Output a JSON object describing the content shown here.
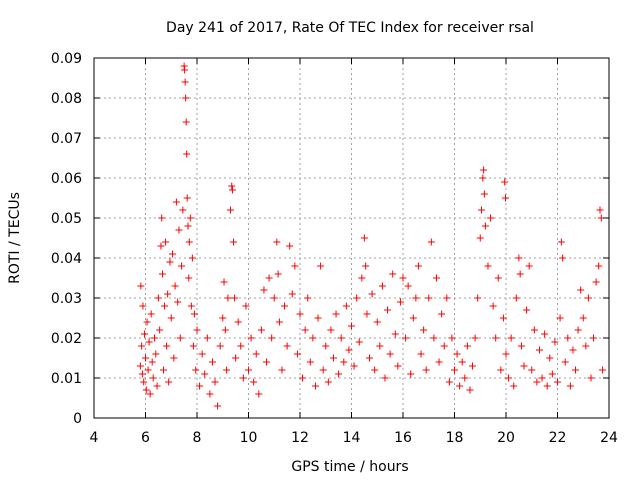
{
  "chart_data": {
    "type": "scatter",
    "title": "Day 241 of 2017, Rate Of TEC Index for receiver rsal",
    "xlabel": "GPS time / hours",
    "ylabel": "ROTI / TECUs",
    "xlim": [
      4,
      24
    ],
    "ylim": [
      0,
      0.09
    ],
    "xticks": [
      4,
      6,
      8,
      10,
      12,
      14,
      16,
      18,
      20,
      22,
      24
    ],
    "xtick_labels": [
      "4",
      "6",
      "8",
      "10",
      "12",
      "14",
      "16",
      "18",
      "20",
      "22",
      "24"
    ],
    "yticks": [
      0,
      0.01,
      0.02,
      0.03,
      0.04,
      0.05,
      0.06,
      0.07,
      0.08,
      0.09
    ],
    "ytick_labels": [
      "0",
      "0.01",
      "0.02",
      "0.03",
      "0.04",
      "0.05",
      "0.06",
      "0.07",
      "0.08",
      "0.09"
    ],
    "grid": true,
    "marker": "plus",
    "color": "#ff0000",
    "series": [
      {
        "name": "ROTI",
        "points": [
          [
            5.8,
            0.013
          ],
          [
            5.82,
            0.033
          ],
          [
            5.85,
            0.018
          ],
          [
            5.88,
            0.011
          ],
          [
            5.9,
            0.028
          ],
          [
            5.93,
            0.009
          ],
          [
            5.96,
            0.021
          ],
          [
            6.0,
            0.015
          ],
          [
            6.03,
            0.007
          ],
          [
            6.06,
            0.024
          ],
          [
            6.1,
            0.012
          ],
          [
            6.14,
            0.019
          ],
          [
            6.18,
            0.006
          ],
          [
            6.22,
            0.026
          ],
          [
            6.26,
            0.014
          ],
          [
            6.3,
            0.01
          ],
          [
            6.35,
            0.02
          ],
          [
            6.4,
            0.016
          ],
          [
            6.45,
            0.008
          ],
          [
            6.5,
            0.03
          ],
          [
            6.55,
            0.022
          ],
          [
            6.6,
            0.043
          ],
          [
            6.63,
            0.05
          ],
          [
            6.66,
            0.036
          ],
          [
            6.7,
            0.012
          ],
          [
            6.74,
            0.028
          ],
          [
            6.78,
            0.044
          ],
          [
            6.82,
            0.018
          ],
          [
            6.86,
            0.031
          ],
          [
            6.9,
            0.009
          ],
          [
            6.95,
            0.039
          ],
          [
            7.0,
            0.025
          ],
          [
            7.05,
            0.041
          ],
          [
            7.1,
            0.015
          ],
          [
            7.15,
            0.033
          ],
          [
            7.2,
            0.054
          ],
          [
            7.25,
            0.029
          ],
          [
            7.3,
            0.047
          ],
          [
            7.35,
            0.02
          ],
          [
            7.4,
            0.038
          ],
          [
            7.45,
            0.052
          ],
          [
            7.5,
            0.088
          ],
          [
            7.52,
            0.087
          ],
          [
            7.54,
            0.084
          ],
          [
            7.56,
            0.08
          ],
          [
            7.58,
            0.074
          ],
          [
            7.6,
            0.066
          ],
          [
            7.62,
            0.055
          ],
          [
            7.65,
            0.048
          ],
          [
            7.68,
            0.035
          ],
          [
            7.7,
            0.044
          ],
          [
            7.74,
            0.05
          ],
          [
            7.78,
            0.028
          ],
          [
            7.82,
            0.04
          ],
          [
            7.86,
            0.018
          ],
          [
            7.9,
            0.026
          ],
          [
            7.95,
            0.012
          ],
          [
            8.0,
            0.022
          ],
          [
            8.1,
            0.008
          ],
          [
            8.2,
            0.016
          ],
          [
            8.3,
            0.011
          ],
          [
            8.4,
            0.02
          ],
          [
            8.5,
            0.006
          ],
          [
            8.6,
            0.014
          ],
          [
            8.7,
            0.009
          ],
          [
            8.8,
            0.003
          ],
          [
            8.9,
            0.018
          ],
          [
            9.0,
            0.025
          ],
          [
            9.05,
            0.034
          ],
          [
            9.1,
            0.022
          ],
          [
            9.15,
            0.012
          ],
          [
            9.2,
            0.03
          ],
          [
            9.3,
            0.052
          ],
          [
            9.35,
            0.058
          ],
          [
            9.38,
            0.057
          ],
          [
            9.42,
            0.044
          ],
          [
            9.46,
            0.03
          ],
          [
            9.5,
            0.015
          ],
          [
            9.6,
            0.024
          ],
          [
            9.7,
            0.018
          ],
          [
            9.8,
            0.01
          ],
          [
            9.9,
            0.028
          ],
          [
            10.0,
            0.012
          ],
          [
            10.1,
            0.02
          ],
          [
            10.2,
            0.009
          ],
          [
            10.3,
            0.016
          ],
          [
            10.4,
            0.006
          ],
          [
            10.5,
            0.022
          ],
          [
            10.6,
            0.032
          ],
          [
            10.7,
            0.014
          ],
          [
            10.8,
            0.035
          ],
          [
            10.9,
            0.02
          ],
          [
            11.0,
            0.03
          ],
          [
            11.1,
            0.044
          ],
          [
            11.15,
            0.036
          ],
          [
            11.2,
            0.024
          ],
          [
            11.3,
            0.012
          ],
          [
            11.4,
            0.028
          ],
          [
            11.5,
            0.018
          ],
          [
            11.6,
            0.043
          ],
          [
            11.7,
            0.031
          ],
          [
            11.8,
            0.038
          ],
          [
            11.9,
            0.016
          ],
          [
            12.0,
            0.026
          ],
          [
            12.1,
            0.01
          ],
          [
            12.2,
            0.022
          ],
          [
            12.3,
            0.03
          ],
          [
            12.4,
            0.014
          ],
          [
            12.5,
            0.02
          ],
          [
            12.6,
            0.008
          ],
          [
            12.7,
            0.025
          ],
          [
            12.8,
            0.038
          ],
          [
            12.9,
            0.012
          ],
          [
            13.0,
            0.018
          ],
          [
            13.1,
            0.009
          ],
          [
            13.2,
            0.022
          ],
          [
            13.3,
            0.015
          ],
          [
            13.4,
            0.026
          ],
          [
            13.5,
            0.011
          ],
          [
            13.6,
            0.02
          ],
          [
            13.7,
            0.014
          ],
          [
            13.8,
            0.028
          ],
          [
            13.9,
            0.017
          ],
          [
            14.0,
            0.023
          ],
          [
            14.1,
            0.013
          ],
          [
            14.2,
            0.03
          ],
          [
            14.3,
            0.019
          ],
          [
            14.4,
            0.035
          ],
          [
            14.5,
            0.045
          ],
          [
            14.55,
            0.038
          ],
          [
            14.6,
            0.026
          ],
          [
            14.7,
            0.015
          ],
          [
            14.8,
            0.031
          ],
          [
            14.9,
            0.012
          ],
          [
            15.0,
            0.024
          ],
          [
            15.1,
            0.018
          ],
          [
            15.2,
            0.033
          ],
          [
            15.3,
            0.01
          ],
          [
            15.4,
            0.027
          ],
          [
            15.5,
            0.016
          ],
          [
            15.6,
            0.036
          ],
          [
            15.7,
            0.021
          ],
          [
            15.8,
            0.013
          ],
          [
            15.9,
            0.029
          ],
          [
            16.0,
            0.035
          ],
          [
            16.1,
            0.02
          ],
          [
            16.2,
            0.033
          ],
          [
            16.3,
            0.011
          ],
          [
            16.4,
            0.025
          ],
          [
            16.5,
            0.03
          ],
          [
            16.6,
            0.038
          ],
          [
            16.7,
            0.016
          ],
          [
            16.8,
            0.022
          ],
          [
            16.9,
            0.012
          ],
          [
            17.0,
            0.03
          ],
          [
            17.1,
            0.044
          ],
          [
            17.2,
            0.02
          ],
          [
            17.3,
            0.035
          ],
          [
            17.4,
            0.014
          ],
          [
            17.5,
            0.026
          ],
          [
            17.6,
            0.018
          ],
          [
            17.7,
            0.03
          ],
          [
            17.8,
            0.009
          ],
          [
            17.9,
            0.02
          ],
          [
            18.0,
            0.012
          ],
          [
            18.1,
            0.016
          ],
          [
            18.2,
            0.008
          ],
          [
            18.3,
            0.014
          ],
          [
            18.4,
            0.01
          ],
          [
            18.5,
            0.018
          ],
          [
            18.6,
            0.007
          ],
          [
            18.7,
            0.013
          ],
          [
            18.8,
            0.02
          ],
          [
            18.9,
            0.03
          ],
          [
            19.0,
            0.045
          ],
          [
            19.05,
            0.052
          ],
          [
            19.1,
            0.06
          ],
          [
            19.13,
            0.062
          ],
          [
            19.16,
            0.056
          ],
          [
            19.2,
            0.048
          ],
          [
            19.3,
            0.038
          ],
          [
            19.4,
            0.05
          ],
          [
            19.5,
            0.028
          ],
          [
            19.6,
            0.02
          ],
          [
            19.7,
            0.035
          ],
          [
            19.8,
            0.012
          ],
          [
            19.9,
            0.025
          ],
          [
            19.95,
            0.059
          ],
          [
            19.98,
            0.055
          ],
          [
            20.0,
            0.016
          ],
          [
            20.1,
            0.01
          ],
          [
            20.2,
            0.02
          ],
          [
            20.3,
            0.008
          ],
          [
            20.4,
            0.03
          ],
          [
            20.5,
            0.04
          ],
          [
            20.55,
            0.036
          ],
          [
            20.6,
            0.018
          ],
          [
            20.7,
            0.013
          ],
          [
            20.8,
            0.027
          ],
          [
            20.9,
            0.038
          ],
          [
            21.0,
            0.012
          ],
          [
            21.1,
            0.022
          ],
          [
            21.2,
            0.009
          ],
          [
            21.3,
            0.017
          ],
          [
            21.4,
            0.01
          ],
          [
            21.5,
            0.021
          ],
          [
            21.6,
            0.008
          ],
          [
            21.7,
            0.015
          ],
          [
            21.8,
            0.011
          ],
          [
            21.9,
            0.019
          ],
          [
            22.0,
            0.009
          ],
          [
            22.1,
            0.025
          ],
          [
            22.15,
            0.044
          ],
          [
            22.2,
            0.04
          ],
          [
            22.3,
            0.014
          ],
          [
            22.4,
            0.02
          ],
          [
            22.5,
            0.008
          ],
          [
            22.6,
            0.017
          ],
          [
            22.7,
            0.012
          ],
          [
            22.8,
            0.022
          ],
          [
            22.9,
            0.032
          ],
          [
            23.0,
            0.025
          ],
          [
            23.1,
            0.018
          ],
          [
            23.2,
            0.03
          ],
          [
            23.3,
            0.01
          ],
          [
            23.4,
            0.02
          ],
          [
            23.5,
            0.034
          ],
          [
            23.6,
            0.038
          ],
          [
            23.65,
            0.052
          ],
          [
            23.7,
            0.05
          ],
          [
            23.75,
            0.012
          ]
        ]
      }
    ]
  }
}
